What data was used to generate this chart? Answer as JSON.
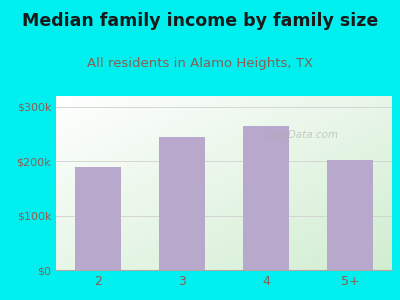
{
  "categories": [
    "2",
    "3",
    "4",
    "5+"
  ],
  "values": [
    190000,
    245000,
    265000,
    202000
  ],
  "bar_color": "#b8a8cc",
  "title": "Median family income by family size",
  "subtitle": "All residents in Alamo Heights, TX",
  "title_fontsize": 12.5,
  "subtitle_fontsize": 9.5,
  "title_color": "#1a1a1a",
  "subtitle_color": "#8b5e52",
  "ylabel_ticks": [
    "$0",
    "$100k",
    "$200k",
    "$300k"
  ],
  "ytick_vals": [
    0,
    100000,
    200000,
    300000
  ],
  "ylim": [
    0,
    320000
  ],
  "background_outer": "#00efef",
  "tick_color": "#8b5e52",
  "grid_color": "#d0d0d0",
  "watermark": "City-Data.com"
}
